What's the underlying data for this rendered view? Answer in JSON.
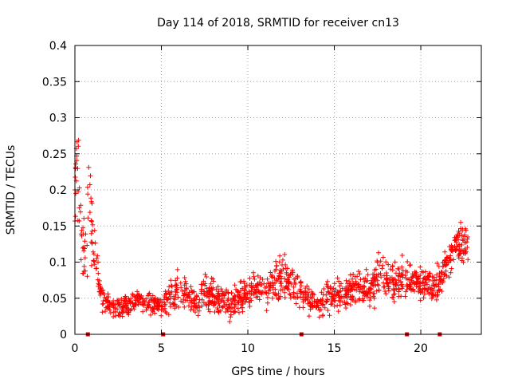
{
  "chart_data": {
    "type": "scatter",
    "title": "Day 114 of 2018, SRMTID for receiver cn13",
    "xlabel": "GPS time / hours",
    "ylabel": "SRMTID / TECUs",
    "xlim": [
      0,
      23.5
    ],
    "ylim": [
      0,
      0.4
    ],
    "x_ticks": [
      0,
      5,
      10,
      15,
      20
    ],
    "x_tick_labels": [
      "0",
      "5",
      "10",
      "15",
      "20"
    ],
    "y_ticks": [
      0,
      0.05,
      0.1,
      0.15,
      0.2,
      0.25,
      0.3,
      0.35,
      0.4
    ],
    "y_tick_labels": [
      "0",
      "0.05",
      "0.1",
      "0.15",
      "0.2",
      "0.25",
      "0.3",
      "0.35",
      "0.4"
    ],
    "grid": true,
    "marker": "+",
    "series_color": "#ff0000",
    "gap_marker_color": "#cc0000",
    "envelope": {
      "description": "approximate scatter density: typical level and spread (data units) vs time",
      "time": [
        0,
        0.1,
        0.3,
        0.5,
        0.7,
        0.8,
        1.0,
        1.3,
        1.6,
        2.0,
        2.5,
        3.0,
        3.5,
        4.0,
        4.5,
        5.0,
        5.5,
        6.0,
        6.5,
        7.0,
        7.5,
        8.0,
        8.5,
        9.0,
        9.5,
        10.0,
        10.5,
        11.0,
        11.5,
        12.0,
        12.5,
        13.0,
        13.5,
        14.0,
        14.5,
        15.0,
        15.5,
        16.0,
        16.5,
        17.0,
        17.5,
        18.0,
        18.5,
        19.0,
        19.5,
        20.0,
        20.5,
        21.0,
        21.5,
        22.0,
        22.5,
        22.8
      ],
      "level": [
        0.2,
        0.24,
        0.17,
        0.11,
        0.15,
        0.2,
        0.13,
        0.08,
        0.05,
        0.04,
        0.038,
        0.04,
        0.045,
        0.048,
        0.04,
        0.038,
        0.055,
        0.065,
        0.05,
        0.045,
        0.06,
        0.055,
        0.045,
        0.04,
        0.05,
        0.058,
        0.062,
        0.06,
        0.075,
        0.08,
        0.07,
        0.06,
        0.045,
        0.04,
        0.05,
        0.055,
        0.05,
        0.06,
        0.07,
        0.06,
        0.08,
        0.075,
        0.07,
        0.08,
        0.075,
        0.07,
        0.065,
        0.07,
        0.1,
        0.12,
        0.125,
        0.13
      ],
      "spread": [
        0.09,
        0.08,
        0.07,
        0.05,
        0.06,
        0.12,
        0.05,
        0.03,
        0.02,
        0.015,
        0.015,
        0.015,
        0.015,
        0.015,
        0.015,
        0.015,
        0.03,
        0.03,
        0.025,
        0.02,
        0.03,
        0.03,
        0.02,
        0.02,
        0.025,
        0.025,
        0.025,
        0.025,
        0.03,
        0.035,
        0.03,
        0.025,
        0.02,
        0.02,
        0.025,
        0.025,
        0.025,
        0.025,
        0.03,
        0.03,
        0.035,
        0.03,
        0.03,
        0.03,
        0.025,
        0.025,
        0.025,
        0.025,
        0.025,
        0.03,
        0.03,
        0.03
      ],
      "n_points": 1400
    },
    "gap_markers_x": [
      0.75,
      5.1,
      13.1,
      19.2,
      21.1
    ]
  }
}
